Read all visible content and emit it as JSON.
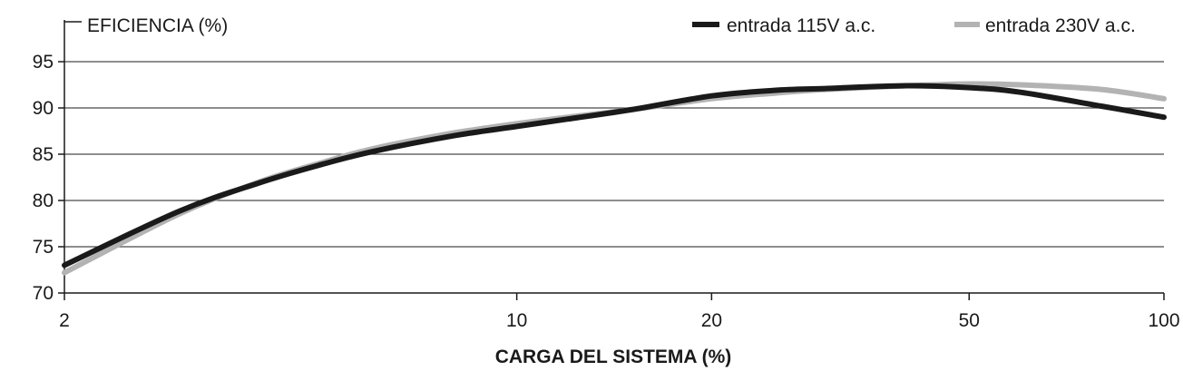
{
  "chart_data": {
    "type": "line",
    "title": "",
    "ylabel": "EFICIENCIA (%)",
    "xlabel": "CARGA DEL SISTEMA (%)",
    "x_scale": "log",
    "xlim": [
      2,
      100
    ],
    "ylim": [
      70,
      98
    ],
    "x_ticks": [
      2,
      10,
      20,
      50,
      100
    ],
    "y_ticks": [
      70,
      75,
      80,
      85,
      90,
      95
    ],
    "grid": "horizontal",
    "legend_position": "top-right",
    "series": [
      {
        "name": "entrada 115V a.c.",
        "color": "#1a1a1a",
        "x": [
          2,
          3,
          4,
          5,
          6,
          8,
          10,
          12,
          15,
          20,
          25,
          30,
          40,
          50,
          60,
          80,
          100
        ],
        "y": [
          73.0,
          78.8,
          81.9,
          83.9,
          85.3,
          87.0,
          88.0,
          88.8,
          89.8,
          91.3,
          91.9,
          92.1,
          92.4,
          92.2,
          91.7,
          90.2,
          89.0
        ]
      },
      {
        "name": "entrada 230V a.c.",
        "color": "#b3b3b3",
        "x": [
          2,
          3,
          4,
          5,
          6,
          8,
          10,
          12,
          15,
          20,
          25,
          30,
          40,
          50,
          60,
          80,
          100
        ],
        "y": [
          72.2,
          78.5,
          82.0,
          84.1,
          85.6,
          87.3,
          88.3,
          89.0,
          89.8,
          91.0,
          91.6,
          92.0,
          92.4,
          92.6,
          92.5,
          92.0,
          91.0
        ]
      }
    ]
  }
}
